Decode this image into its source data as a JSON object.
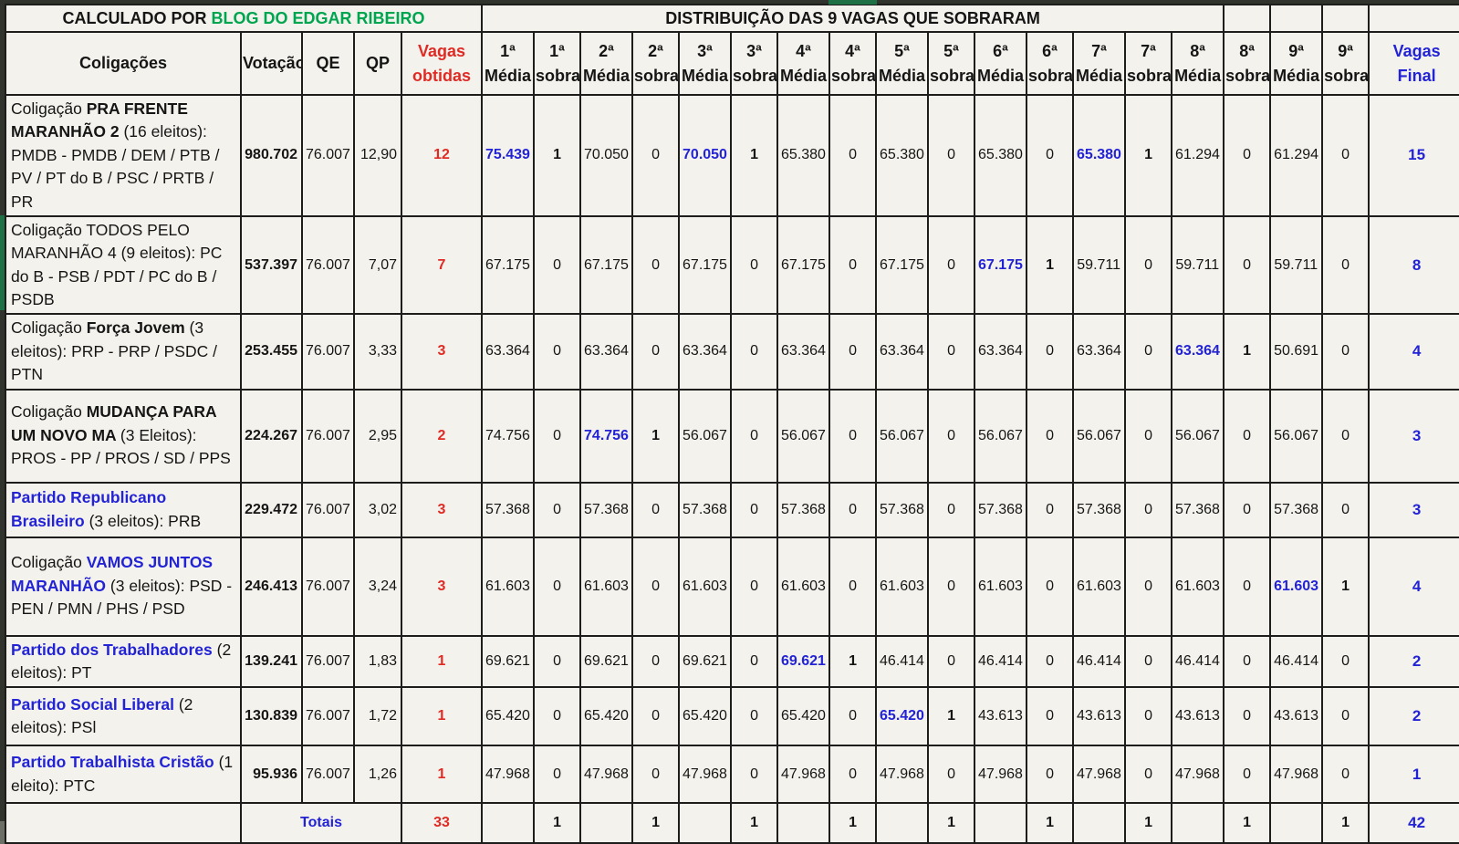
{
  "header": {
    "left_title_black": "CALCULADO POR ",
    "left_title_green": "BLOG DO EDGAR RIBEIRO",
    "right_title": "DISTRIBUIÇÃO DAS 9 VAGAS QUE SOBRARAM"
  },
  "columns": {
    "coligacoes": "Coligações",
    "votacao": "Votação",
    "qe": "QE",
    "qp": "QP",
    "vagas_obtidas_line1": "Vagas",
    "vagas_obtidas_line2": "obtidas",
    "rounds": [
      "1ª",
      "2ª",
      "3ª",
      "4ª",
      "5ª",
      "6ª",
      "7ª",
      "8ª",
      "9ª"
    ],
    "media_label": "Média",
    "sobra_label": "sobra",
    "vagas_final_line1": "Vagas",
    "vagas_final_line2": "Final"
  },
  "colors": {
    "title_green": "#00a54f",
    "accent_red": "#e02b25",
    "accent_blue": "#2323d6",
    "selection_green": "#1e7145"
  },
  "selection": {
    "row_index": 1,
    "round_index": 3,
    "target": "sobra"
  },
  "rows": [
    {
      "name_segments": [
        {
          "text": "Coligação ",
          "bold": false,
          "blue": false
        },
        {
          "text": "PRA FRENTE MARANHÃO 2 ",
          "bold": true,
          "blue": false
        },
        {
          "text": "(16 eleitos): PMDB - PMDB / DEM / PTB / PV / PT do B / PSC / PRTB / PR",
          "bold": false,
          "blue": false
        }
      ],
      "votacao": "980.702",
      "qe": "76.007",
      "qp": "12,90",
      "vagas_obtidas": "12",
      "pairs": [
        {
          "media": "75.439",
          "media_blue": true,
          "sobra": "1"
        },
        {
          "media": "70.050",
          "media_blue": false,
          "sobra": "0"
        },
        {
          "media": "70.050",
          "media_blue": true,
          "sobra": "1"
        },
        {
          "media": "65.380",
          "media_blue": false,
          "sobra": "0"
        },
        {
          "media": "65.380",
          "media_blue": false,
          "sobra": "0"
        },
        {
          "media": "65.380",
          "media_blue": false,
          "sobra": "0"
        },
        {
          "media": "65.380",
          "media_blue": true,
          "sobra": "1"
        },
        {
          "media": "61.294",
          "media_blue": false,
          "sobra": "0"
        },
        {
          "media": "61.294",
          "media_blue": false,
          "sobra": "0"
        }
      ],
      "vagas_final": "15"
    },
    {
      "name_segments": [
        {
          "text": "Coligação TODOS PELO MARANHÃO 4 (9 eleitos): PC do B - PSB / PDT / PC do B / PSDB",
          "bold": false,
          "blue": false
        }
      ],
      "votacao": "537.397",
      "qe": "76.007",
      "qp": "7,07",
      "vagas_obtidas": "7",
      "pairs": [
        {
          "media": "67.175",
          "media_blue": false,
          "sobra": "0"
        },
        {
          "media": "67.175",
          "media_blue": false,
          "sobra": "0"
        },
        {
          "media": "67.175",
          "media_blue": false,
          "sobra": "0"
        },
        {
          "media": "67.175",
          "media_blue": false,
          "sobra": "0"
        },
        {
          "media": "67.175",
          "media_blue": false,
          "sobra": "0"
        },
        {
          "media": "67.175",
          "media_blue": true,
          "sobra": "1"
        },
        {
          "media": "59.711",
          "media_blue": false,
          "sobra": "0"
        },
        {
          "media": "59.711",
          "media_blue": false,
          "sobra": "0"
        },
        {
          "media": "59.711",
          "media_blue": false,
          "sobra": "0"
        }
      ],
      "vagas_final": "8"
    },
    {
      "name_segments": [
        {
          "text": "Coligação ",
          "bold": false,
          "blue": false
        },
        {
          "text": "Força Jovem ",
          "bold": true,
          "blue": false
        },
        {
          "text": "(3 eleitos): PRP - PRP / PSDC / PTN",
          "bold": false,
          "blue": false
        }
      ],
      "votacao": "253.455",
      "qe": "76.007",
      "qp": "3,33",
      "vagas_obtidas": "3",
      "pairs": [
        {
          "media": "63.364",
          "media_blue": false,
          "sobra": "0"
        },
        {
          "media": "63.364",
          "media_blue": false,
          "sobra": "0"
        },
        {
          "media": "63.364",
          "media_blue": false,
          "sobra": "0"
        },
        {
          "media": "63.364",
          "media_blue": false,
          "sobra": "0"
        },
        {
          "media": "63.364",
          "media_blue": false,
          "sobra": "0"
        },
        {
          "media": "63.364",
          "media_blue": false,
          "sobra": "0"
        },
        {
          "media": "63.364",
          "media_blue": false,
          "sobra": "0"
        },
        {
          "media": "63.364",
          "media_blue": true,
          "sobra": "1"
        },
        {
          "media": "50.691",
          "media_blue": false,
          "sobra": "0"
        }
      ],
      "vagas_final": "4"
    },
    {
      "name_segments": [
        {
          "text": "Coligação ",
          "bold": false,
          "blue": false
        },
        {
          "text": "MUDANÇA PARA UM NOVO MA ",
          "bold": true,
          "blue": false
        },
        {
          "text": "(3 Eleitos): PROS - PP / PROS / SD / PPS",
          "bold": false,
          "blue": false
        }
      ],
      "votacao": "224.267",
      "qe": "76.007",
      "qp": "2,95",
      "vagas_obtidas": "2",
      "pairs": [
        {
          "media": "74.756",
          "media_blue": false,
          "sobra": "0"
        },
        {
          "media": "74.756",
          "media_blue": true,
          "sobra": "1"
        },
        {
          "media": "56.067",
          "media_blue": false,
          "sobra": "0"
        },
        {
          "media": "56.067",
          "media_blue": false,
          "sobra": "0"
        },
        {
          "media": "56.067",
          "media_blue": false,
          "sobra": "0"
        },
        {
          "media": "56.067",
          "media_blue": false,
          "sobra": "0"
        },
        {
          "media": "56.067",
          "media_blue": false,
          "sobra": "0"
        },
        {
          "media": "56.067",
          "media_blue": false,
          "sobra": "0"
        },
        {
          "media": "56.067",
          "media_blue": false,
          "sobra": "0"
        }
      ],
      "vagas_final": "3"
    },
    {
      "name_segments": [
        {
          "text": "Partido Republicano Brasileiro ",
          "bold": true,
          "blue": true
        },
        {
          "text": "(3 eleitos): PRB",
          "bold": false,
          "blue": false
        }
      ],
      "votacao": "229.472",
      "qe": "76.007",
      "qp": "3,02",
      "vagas_obtidas": "3",
      "pairs": [
        {
          "media": "57.368",
          "media_blue": false,
          "sobra": "0"
        },
        {
          "media": "57.368",
          "media_blue": false,
          "sobra": "0"
        },
        {
          "media": "57.368",
          "media_blue": false,
          "sobra": "0"
        },
        {
          "media": "57.368",
          "media_blue": false,
          "sobra": "0"
        },
        {
          "media": "57.368",
          "media_blue": false,
          "sobra": "0"
        },
        {
          "media": "57.368",
          "media_blue": false,
          "sobra": "0"
        },
        {
          "media": "57.368",
          "media_blue": false,
          "sobra": "0"
        },
        {
          "media": "57.368",
          "media_blue": false,
          "sobra": "0"
        },
        {
          "media": "57.368",
          "media_blue": false,
          "sobra": "0"
        }
      ],
      "vagas_final": "3"
    },
    {
      "name_segments": [
        {
          "text": "Coligação ",
          "bold": false,
          "blue": false
        },
        {
          "text": "VAMOS JUNTOS MARANHÃO ",
          "bold": true,
          "blue": true
        },
        {
          "text": " (3 eleitos): PSD - PEN / PMN / PHS / PSD",
          "bold": false,
          "blue": false
        }
      ],
      "votacao": "246.413",
      "qe": "76.007",
      "qp": "3,24",
      "vagas_obtidas": "3",
      "pairs": [
        {
          "media": "61.603",
          "media_blue": false,
          "sobra": "0"
        },
        {
          "media": "61.603",
          "media_blue": false,
          "sobra": "0"
        },
        {
          "media": "61.603",
          "media_blue": false,
          "sobra": "0"
        },
        {
          "media": "61.603",
          "media_blue": false,
          "sobra": "0"
        },
        {
          "media": "61.603",
          "media_blue": false,
          "sobra": "0"
        },
        {
          "media": "61.603",
          "media_blue": false,
          "sobra": "0"
        },
        {
          "media": "61.603",
          "media_blue": false,
          "sobra": "0"
        },
        {
          "media": "61.603",
          "media_blue": false,
          "sobra": "0"
        },
        {
          "media": "61.603",
          "media_blue": true,
          "sobra": "1"
        }
      ],
      "vagas_final": "4"
    },
    {
      "name_segments": [
        {
          "text": "Partido dos Trabalhadores ",
          "bold": true,
          "blue": true
        },
        {
          "text": " (2 eleitos): PT",
          "bold": false,
          "blue": false
        }
      ],
      "votacao": "139.241",
      "qe": "76.007",
      "qp": "1,83",
      "vagas_obtidas": "1",
      "pairs": [
        {
          "media": "69.621",
          "media_blue": false,
          "sobra": "0"
        },
        {
          "media": "69.621",
          "media_blue": false,
          "sobra": "0"
        },
        {
          "media": "69.621",
          "media_blue": false,
          "sobra": "0"
        },
        {
          "media": "69.621",
          "media_blue": true,
          "sobra": "1"
        },
        {
          "media": "46.414",
          "media_blue": false,
          "sobra": "0"
        },
        {
          "media": "46.414",
          "media_blue": false,
          "sobra": "0"
        },
        {
          "media": "46.414",
          "media_blue": false,
          "sobra": "0"
        },
        {
          "media": "46.414",
          "media_blue": false,
          "sobra": "0"
        },
        {
          "media": "46.414",
          "media_blue": false,
          "sobra": "0"
        }
      ],
      "vagas_final": "2"
    },
    {
      "name_segments": [
        {
          "text": "Partido Social Liberal ",
          "bold": true,
          "blue": true
        },
        {
          "text": " (2 eleitos): PSl",
          "bold": false,
          "blue": false
        }
      ],
      "votacao": "130.839",
      "qe": "76.007",
      "qp": "1,72",
      "vagas_obtidas": "1",
      "pairs": [
        {
          "media": "65.420",
          "media_blue": false,
          "sobra": "0"
        },
        {
          "media": "65.420",
          "media_blue": false,
          "sobra": "0"
        },
        {
          "media": "65.420",
          "media_blue": false,
          "sobra": "0"
        },
        {
          "media": "65.420",
          "media_blue": false,
          "sobra": "0"
        },
        {
          "media": "65.420",
          "media_blue": true,
          "sobra": "1"
        },
        {
          "media": "43.613",
          "media_blue": false,
          "sobra": "0"
        },
        {
          "media": "43.613",
          "media_blue": false,
          "sobra": "0"
        },
        {
          "media": "43.613",
          "media_blue": false,
          "sobra": "0"
        },
        {
          "media": "43.613",
          "media_blue": false,
          "sobra": "0"
        }
      ],
      "vagas_final": "2"
    },
    {
      "name_segments": [
        {
          "text": "Partido Trabalhista Cristão ",
          "bold": true,
          "blue": true
        },
        {
          "text": " (1 eleito): PTC",
          "bold": false,
          "blue": false
        }
      ],
      "votacao": "95.936",
      "qe": "76.007",
      "qp": "1,26",
      "vagas_obtidas": "1",
      "pairs": [
        {
          "media": "47.968",
          "media_blue": false,
          "sobra": "0"
        },
        {
          "media": "47.968",
          "media_blue": false,
          "sobra": "0"
        },
        {
          "media": "47.968",
          "media_blue": false,
          "sobra": "0"
        },
        {
          "media": "47.968",
          "media_blue": false,
          "sobra": "0"
        },
        {
          "media": "47.968",
          "media_blue": false,
          "sobra": "0"
        },
        {
          "media": "47.968",
          "media_blue": false,
          "sobra": "0"
        },
        {
          "media": "47.968",
          "media_blue": false,
          "sobra": "0"
        },
        {
          "media": "47.968",
          "media_blue": false,
          "sobra": "0"
        },
        {
          "media": "47.968",
          "media_blue": false,
          "sobra": "0"
        }
      ],
      "vagas_final": "1"
    }
  ],
  "totals": {
    "label": "Totais",
    "vagas_obtidas": "33",
    "sobras": [
      "1",
      "1",
      "1",
      "1",
      "1",
      "1",
      "1",
      "1",
      "1"
    ],
    "vagas_final": "42"
  }
}
